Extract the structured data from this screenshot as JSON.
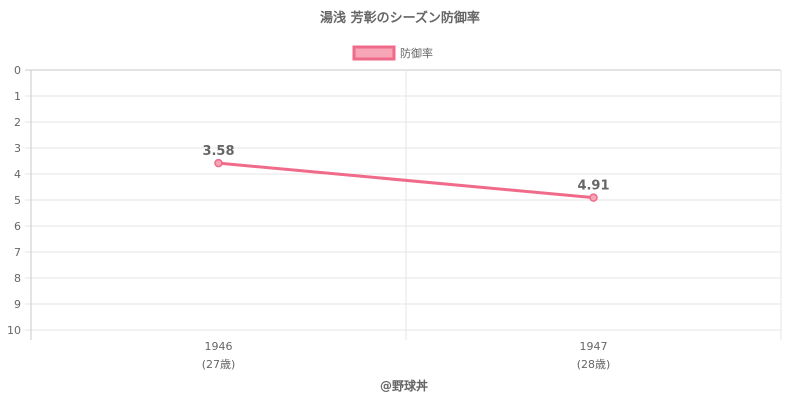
{
  "chart_data": {
    "type": "line",
    "title": "湯浅 芳彰のシーズン防御率",
    "categories": [
      {
        "year": "1946",
        "age": "(27歳)"
      },
      {
        "year": "1947",
        "age": "(28歳)"
      }
    ],
    "series": [
      {
        "name": "防御率",
        "values": [
          3.58,
          4.91
        ],
        "labels": [
          "3.58",
          "4.91"
        ]
      }
    ],
    "y_axis": {
      "min": 0,
      "max": 10,
      "step": 1,
      "reversed": true,
      "tick_labels": [
        "0",
        "1",
        "2",
        "3",
        "4",
        "5",
        "6",
        "7",
        "8",
        "9",
        "10"
      ]
    },
    "legend_position": "top-center",
    "grid": true,
    "colors": {
      "line": "#f06a8a",
      "fill": "#f7a6b8",
      "grid": "#e6e6e6",
      "text": "#666666"
    }
  },
  "footer": {
    "credit": "@野球丼"
  }
}
